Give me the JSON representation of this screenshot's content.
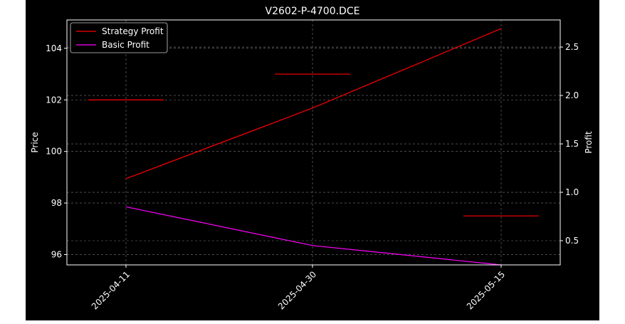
{
  "chart_data": {
    "type": "line",
    "title": "V2602-P-4700.DCE",
    "xlabel": "",
    "ylabel_left": "Price",
    "ylabel_right": "Profit",
    "x": [
      "2025-04-11",
      "2025-04-30",
      "2025-05-15"
    ],
    "left_axis": {
      "ylim": [
        95.6,
        105.1
      ],
      "ticks": [
        96,
        98,
        100,
        102,
        104
      ],
      "tick_labels": [
        "96",
        "98",
        "100",
        "102",
        "104"
      ]
    },
    "right_axis": {
      "ylim": [
        0.25,
        2.78
      ],
      "ticks": [
        0.5,
        1.0,
        1.5,
        2.0,
        2.5
      ],
      "tick_labels": [
        "0.5",
        "1.0",
        "1.5",
        "2.0",
        "2.5"
      ]
    },
    "series": [
      {
        "name": "Strategy Profit",
        "axis": "right",
        "color": "#ff0000",
        "values": [
          1.14,
          1.87,
          2.69
        ]
      },
      {
        "name": "Basic Profit",
        "axis": "right",
        "color": "#ff00ff",
        "values": [
          0.85,
          0.45,
          0.25
        ]
      }
    ],
    "price_marks": {
      "axis": "left",
      "color": "#ff0000",
      "values": [
        102.0,
        103.0,
        97.5
      ]
    },
    "grid": true,
    "legend_position": "top-left",
    "background": "#000000"
  }
}
